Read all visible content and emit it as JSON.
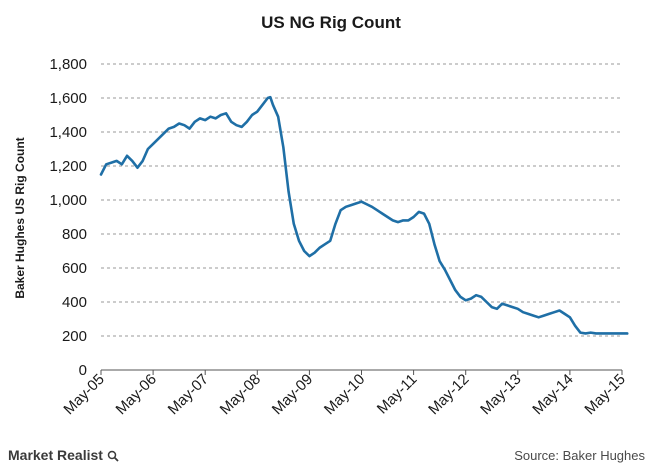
{
  "colors": {
    "series": "#1f6fa6",
    "grid": "#9a9a9a",
    "text": "#1a1a1a"
  },
  "footer": {
    "brand": "Market Realist",
    "brand_icon": "magnifier-icon",
    "source": "Source: Baker Hughes"
  },
  "chart_data": {
    "type": "line",
    "title": "US NG Rig Count",
    "xlabel": "",
    "ylabel": "Baker Hughes US Rig Count",
    "ylim": [
      0,
      1800
    ],
    "yticks": [
      0,
      200,
      400,
      600,
      800,
      1000,
      1200,
      1400,
      1600,
      1800
    ],
    "ytick_labels": [
      "0",
      "200",
      "400",
      "600",
      "800",
      "1,000",
      "1,200",
      "1,400",
      "1,600",
      "1,800"
    ],
    "xtick_labels": [
      "May-05",
      "May-06",
      "May-07",
      "May-08",
      "May-09",
      "May-10",
      "May-11",
      "May-12",
      "May-13",
      "May-14",
      "May-15"
    ],
    "xlim_years": [
      0,
      10
    ],
    "grid": true,
    "series": [
      {
        "name": "US NG Rig Count",
        "x": [
          0.0,
          0.1,
          0.2,
          0.3,
          0.4,
          0.5,
          0.6,
          0.7,
          0.8,
          0.9,
          1.0,
          1.1,
          1.2,
          1.3,
          1.4,
          1.5,
          1.6,
          1.7,
          1.8,
          1.9,
          2.0,
          2.1,
          2.2,
          2.3,
          2.4,
          2.5,
          2.6,
          2.7,
          2.8,
          2.9,
          3.0,
          3.1,
          3.2,
          3.25,
          3.3,
          3.4,
          3.5,
          3.6,
          3.7,
          3.8,
          3.9,
          4.0,
          4.1,
          4.2,
          4.3,
          4.4,
          4.5,
          4.6,
          4.7,
          4.8,
          4.9,
          5.0,
          5.1,
          5.2,
          5.3,
          5.4,
          5.5,
          5.6,
          5.7,
          5.8,
          5.9,
          6.0,
          6.1,
          6.2,
          6.3,
          6.4,
          6.5,
          6.6,
          6.7,
          6.8,
          6.9,
          7.0,
          7.1,
          7.2,
          7.3,
          7.4,
          7.5,
          7.6,
          7.7,
          7.8,
          7.9,
          8.0,
          8.1,
          8.2,
          8.3,
          8.4,
          8.5,
          8.6,
          8.7,
          8.8,
          8.9,
          9.0,
          9.1,
          9.2,
          9.3,
          9.4,
          9.5,
          9.6,
          9.7,
          9.8,
          9.85,
          9.9,
          10.0,
          10.1
        ],
        "values": [
          1150,
          1210,
          1220,
          1230,
          1210,
          1260,
          1230,
          1190,
          1230,
          1300,
          1330,
          1360,
          1390,
          1420,
          1430,
          1450,
          1440,
          1420,
          1460,
          1480,
          1470,
          1490,
          1480,
          1500,
          1510,
          1460,
          1440,
          1430,
          1460,
          1500,
          1520,
          1560,
          1600,
          1605,
          1560,
          1490,
          1310,
          1050,
          860,
          760,
          700,
          670,
          690,
          720,
          740,
          760,
          860,
          940,
          960,
          970,
          980,
          990,
          975,
          960,
          940,
          920,
          900,
          880,
          870,
          880,
          880,
          900,
          930,
          920,
          860,
          740,
          640,
          590,
          530,
          470,
          430,
          410,
          420,
          440,
          430,
          400,
          370,
          360,
          390,
          380,
          370,
          360,
          340,
          330,
          320,
          310,
          320,
          330,
          340,
          350,
          330,
          310,
          260,
          220,
          215,
          220,
          215,
          215,
          215,
          215,
          215,
          215,
          215,
          215
        ]
      }
    ]
  }
}
